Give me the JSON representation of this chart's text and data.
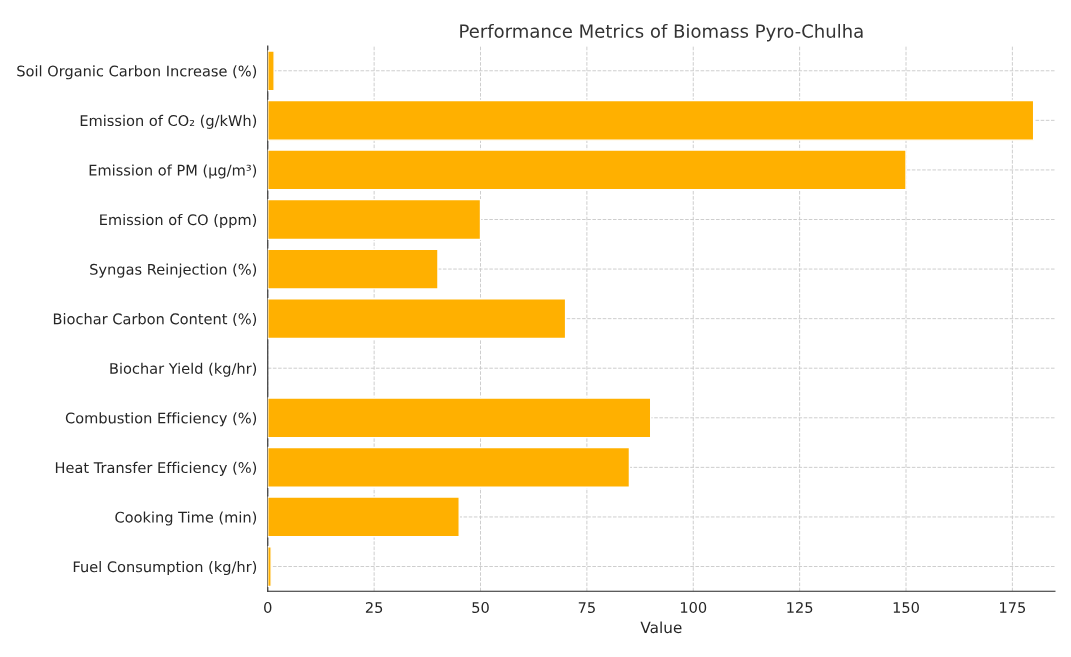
{
  "chart_data": {
    "type": "bar",
    "orientation": "horizontal",
    "title": "Performance Metrics of Biomass Pyro-Chulha",
    "xlabel": "Value",
    "categories": [
      "Soil Organic Carbon Increase (%)",
      "Emission of CO₂ (g/kWh)",
      "Emission of PM (µg/m³)",
      "Emission of CO (ppm)",
      "Syngas Reinjection (%)",
      "Biochar Carbon Content (%)",
      "Biochar Yield (kg/hr)",
      "Combustion Efficiency (%)",
      "Heat Transfer Efficiency (%)",
      "Cooking Time (min)",
      "Fuel Consumption (kg/hr)"
    ],
    "values": [
      1.5,
      180,
      150,
      50,
      40,
      70,
      null,
      90,
      85,
      45,
      0.8
    ],
    "color": "#ffb000",
    "xlim": [
      0,
      185
    ],
    "xticks": [
      0,
      25,
      50,
      75,
      100,
      125,
      150,
      175
    ],
    "grid": true
  }
}
